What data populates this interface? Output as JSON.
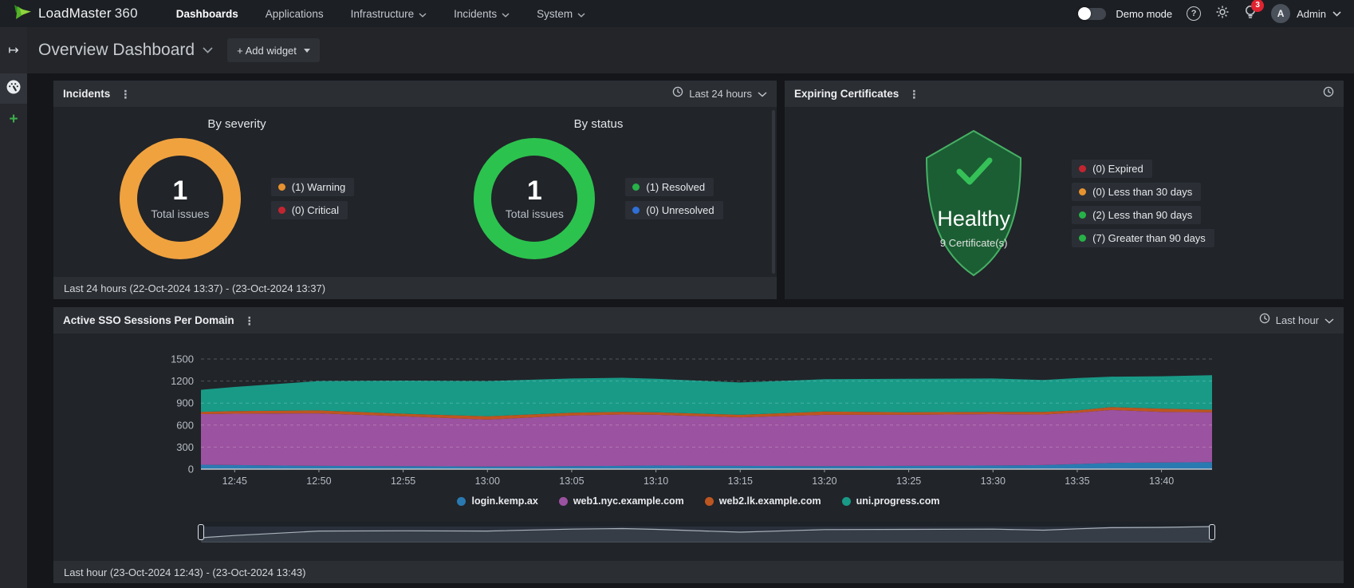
{
  "topnav": {
    "brand_name": "LoadMaster",
    "brand_suffix": "360",
    "items": [
      {
        "label": "Dashboards",
        "active": true,
        "dropdown": false
      },
      {
        "label": "Applications",
        "active": false,
        "dropdown": false
      },
      {
        "label": "Infrastructure",
        "active": false,
        "dropdown": true
      },
      {
        "label": "Incidents",
        "active": false,
        "dropdown": true
      },
      {
        "label": "System",
        "active": false,
        "dropdown": true
      }
    ],
    "demo_mode_label": "Demo mode",
    "notification_count": "3",
    "user_initial": "A",
    "user_name": "Admin"
  },
  "page_header": {
    "title": "Overview Dashboard",
    "add_widget_label": "+ Add widget"
  },
  "incidents": {
    "title": "Incidents",
    "time_range": "Last 24 hours",
    "footer": "Last 24 hours (22-Oct-2024 13:37) - (23-Oct-2024 13:37)",
    "by_severity": {
      "title": "By severity",
      "total": "1",
      "total_label": "Total issues",
      "ring_color": "#f0a23f",
      "legend": [
        {
          "label": "(1) Warning",
          "color": "#e8922f"
        },
        {
          "label": "(0) Critical",
          "color": "#c32530"
        }
      ]
    },
    "by_status": {
      "title": "By status",
      "total": "1",
      "total_label": "Total issues",
      "ring_color": "#2cc24e",
      "legend": [
        {
          "label": "(1) Resolved",
          "color": "#27b148"
        },
        {
          "label": "(0) Unresolved",
          "color": "#2f6fd6"
        }
      ]
    }
  },
  "certificates": {
    "title": "Expiring Certificates",
    "status_label": "Healthy",
    "count_label": "9 Certificate(s)",
    "shield_fill": "#1b5e33",
    "shield_stroke": "#47b065",
    "check_color": "#35c158",
    "legend": [
      {
        "label": "(0) Expired",
        "color": "#c32530"
      },
      {
        "label": "(0) Less than 30 days",
        "color": "#e8922f"
      },
      {
        "label": "(2) Less than 90 days",
        "color": "#27b148"
      },
      {
        "label": "(7) Greater than 90 days",
        "color": "#27b148"
      }
    ]
  },
  "sso": {
    "title": "Active SSO Sessions Per Domain",
    "time_range": "Last hour",
    "footer": "Last hour (23-Oct-2024 12:43) - (23-Oct-2024 13:43)"
  },
  "chart_data": {
    "type": "area",
    "stacked": true,
    "title": "Active SSO Sessions Per Domain",
    "xlabel": "",
    "ylabel": "",
    "x_range_minutes": [
      43,
      103
    ],
    "x_minutes": [
      43,
      45,
      50,
      55,
      60,
      65,
      68,
      70,
      75,
      80,
      85,
      90,
      93,
      95,
      97,
      100,
      103
    ],
    "x_ticks": [
      {
        "minute": 45,
        "label": "12:45"
      },
      {
        "minute": 50,
        "label": "12:50"
      },
      {
        "minute": 55,
        "label": "12:55"
      },
      {
        "minute": 60,
        "label": "13:00"
      },
      {
        "minute": 65,
        "label": "13:05"
      },
      {
        "minute": 70,
        "label": "13:10"
      },
      {
        "minute": 75,
        "label": "13:15"
      },
      {
        "minute": 80,
        "label": "13:20"
      },
      {
        "minute": 85,
        "label": "13:25"
      },
      {
        "minute": 90,
        "label": "13:30"
      },
      {
        "minute": 95,
        "label": "13:35"
      },
      {
        "minute": 100,
        "label": "13:40"
      }
    ],
    "ylim": [
      0,
      1500
    ],
    "yticks": [
      0,
      300,
      600,
      900,
      1200,
      1500
    ],
    "grid": "dashed",
    "legend_position": "bottom",
    "series": [
      {
        "name": "login.kemp.ax",
        "color": "#2a7ab2",
        "values": [
          60,
          55,
          45,
          40,
          35,
          40,
          45,
          50,
          45,
          40,
          45,
          50,
          55,
          70,
          85,
          90,
          95
        ]
      },
      {
        "name": "web1.nyc.example.com",
        "color": "#9b52a0",
        "values": [
          690,
          700,
          715,
          680,
          640,
          690,
          700,
          690,
          660,
          700,
          695,
          700,
          690,
          700,
          720,
          690,
          680
        ]
      },
      {
        "name": "web2.lk.example.com",
        "color": "#bd5620",
        "values": [
          30,
          35,
          40,
          35,
          45,
          40,
          35,
          35,
          35,
          45,
          35,
          30,
          35,
          30,
          40,
          45,
          35
        ]
      },
      {
        "name": "uni.progress.com",
        "color": "#189a87",
        "values": [
          300,
          330,
          400,
          450,
          480,
          465,
          465,
          455,
          440,
          440,
          455,
          455,
          435,
          440,
          415,
          440,
          470
        ]
      }
    ]
  }
}
